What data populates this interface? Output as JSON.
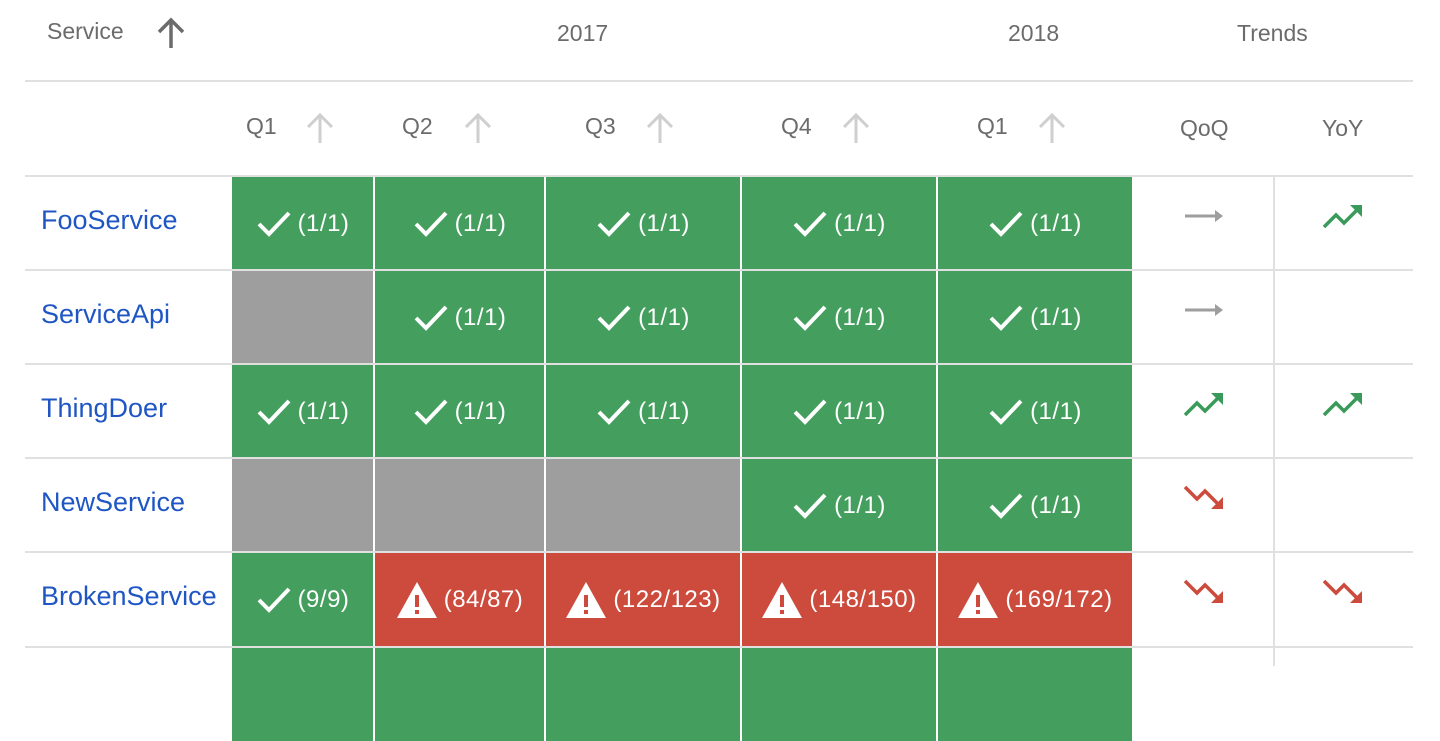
{
  "header": {
    "service_label": "Service",
    "year_2017": "2017",
    "year_2018": "2018",
    "trends_label": "Trends",
    "sort_icon": "arrow-up-icon"
  },
  "columns": {
    "quarters": [
      "Q1",
      "Q2",
      "Q3",
      "Q4",
      "Q1"
    ],
    "trends": [
      "QoQ",
      "YoY"
    ]
  },
  "colors": {
    "ok": "#449f5f",
    "none": "#9e9e9e",
    "bad": "#cc4b3c",
    "link": "#1f56c4",
    "trend_up": "#3a9a5a",
    "trend_down": "#cc4b3c",
    "trend_flat": "#9e9e9e"
  },
  "rows": [
    {
      "service": "FooService",
      "cells": [
        {
          "status": "ok",
          "text": "(1/1)"
        },
        {
          "status": "ok",
          "text": "(1/1)"
        },
        {
          "status": "ok",
          "text": "(1/1)"
        },
        {
          "status": "ok",
          "text": "(1/1)"
        },
        {
          "status": "ok",
          "text": "(1/1)"
        }
      ],
      "qoq": "flat",
      "yoy": "up"
    },
    {
      "service": "ServiceApi",
      "cells": [
        {
          "status": "none",
          "text": ""
        },
        {
          "status": "ok",
          "text": "(1/1)"
        },
        {
          "status": "ok",
          "text": "(1/1)"
        },
        {
          "status": "ok",
          "text": "(1/1)"
        },
        {
          "status": "ok",
          "text": "(1/1)"
        }
      ],
      "qoq": "flat",
      "yoy": ""
    },
    {
      "service": "ThingDoer",
      "cells": [
        {
          "status": "ok",
          "text": "(1/1)"
        },
        {
          "status": "ok",
          "text": "(1/1)"
        },
        {
          "status": "ok",
          "text": "(1/1)"
        },
        {
          "status": "ok",
          "text": "(1/1)"
        },
        {
          "status": "ok",
          "text": "(1/1)"
        }
      ],
      "qoq": "up",
      "yoy": "up"
    },
    {
      "service": "NewService",
      "cells": [
        {
          "status": "none",
          "text": ""
        },
        {
          "status": "none",
          "text": ""
        },
        {
          "status": "none",
          "text": ""
        },
        {
          "status": "ok",
          "text": "(1/1)"
        },
        {
          "status": "ok",
          "text": "(1/1)"
        }
      ],
      "qoq": "down",
      "yoy": ""
    },
    {
      "service": "BrokenService",
      "cells": [
        {
          "status": "ok",
          "text": "(9/9)"
        },
        {
          "status": "bad",
          "text": "(84/87)"
        },
        {
          "status": "bad",
          "text": "(122/123)"
        },
        {
          "status": "bad",
          "text": "(148/150)"
        },
        {
          "status": "bad",
          "text": "(169/172)"
        }
      ],
      "qoq": "down",
      "yoy": "down"
    },
    {
      "service": "",
      "cells": [
        {
          "status": "ok",
          "text": ""
        },
        {
          "status": "ok",
          "text": ""
        },
        {
          "status": "ok",
          "text": ""
        },
        {
          "status": "ok",
          "text": ""
        },
        {
          "status": "ok",
          "text": ""
        }
      ],
      "qoq": "",
      "yoy": ""
    }
  ]
}
